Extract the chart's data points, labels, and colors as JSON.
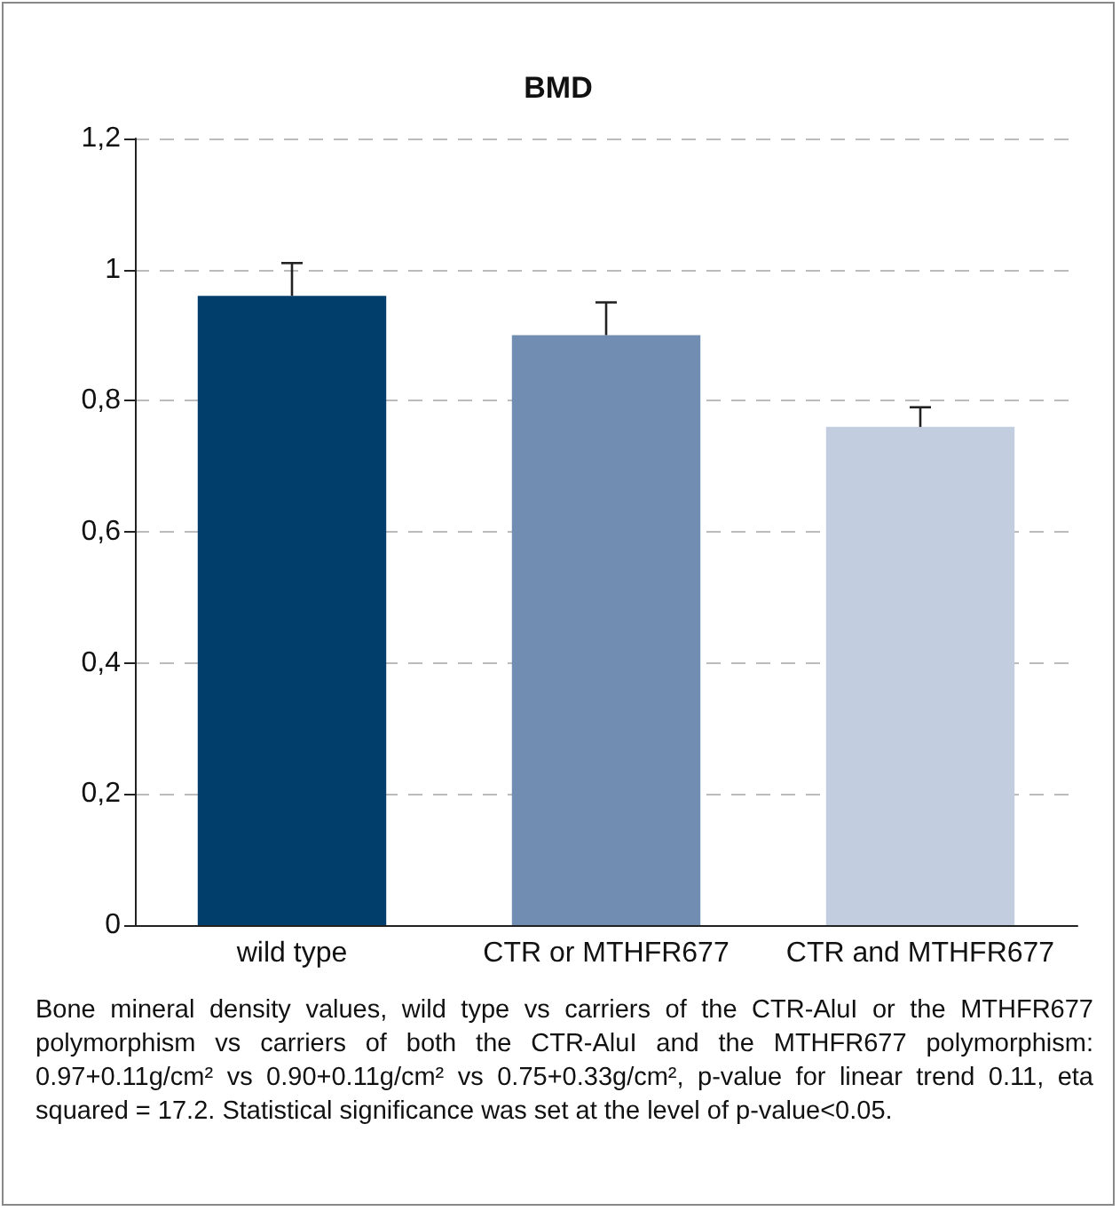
{
  "chart_data": {
    "type": "bar",
    "title": "BMD",
    "categories": [
      "wild type",
      "CTR or MTHFR677",
      "CTR and MTHFR677"
    ],
    "values": [
      0.96,
      0.9,
      0.76
    ],
    "colors": [
      "#023e6b",
      "#728db2",
      "#c2cde0"
    ],
    "errors": [
      [
        0.96,
        1.01
      ],
      [
        0.9,
        0.95
      ],
      [
        0.76,
        0.79
      ]
    ],
    "ylim": [
      0,
      1.2
    ],
    "yticks": [
      0,
      {
        "value": 0.2,
        "label": "0,2"
      },
      {
        "value": 0.4,
        "label": "0,4"
      },
      {
        "value": 0.6,
        "label": "0,6"
      },
      {
        "value": 0.8,
        "label": "0,8"
      },
      1,
      {
        "value": 1.2,
        "label": "1,2"
      }
    ],
    "grid": "y",
    "annotations": [
      "Bone mineral density values, wild type vs carriers of the CTR-AluI or the MTHFR677 polymorphism vs carriers of both the CTR-AluI and the MTHFR677 polymorphism: 0.97+0.11g/cm² vs 0.90+0.11g/cm² vs 0.75+0.33g/cm², p-value for linear trend 0.11, eta squared = 17.2. Statistical significance was set at the level of p-value<0.05."
    ]
  }
}
